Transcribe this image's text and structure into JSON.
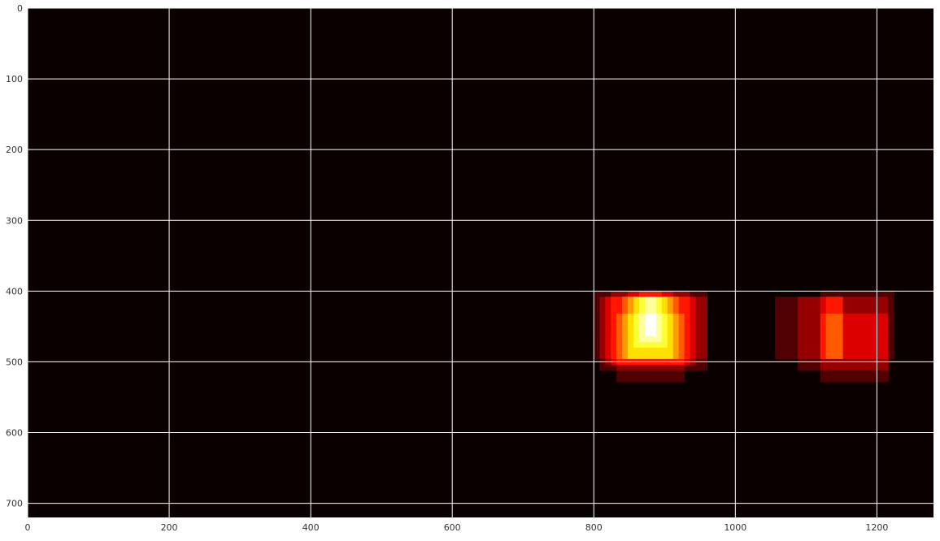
{
  "chart_data": {
    "type": "heatmap",
    "title": "",
    "xlabel": "",
    "ylabel": "",
    "xlim": [
      0,
      1280
    ],
    "ylim": [
      720,
      0
    ],
    "x_ticks": [
      0,
      200,
      400,
      600,
      800,
      1000,
      1200
    ],
    "y_ticks": [
      0,
      100,
      200,
      300,
      400,
      500,
      600,
      700
    ],
    "grid": true,
    "colormap": "hot",
    "background_color": "#0b0000",
    "grid_color": "#ffffff",
    "heat_boxes": [
      {
        "x": [
          800,
          960
        ],
        "y": [
          400,
          496
        ],
        "value": 1
      },
      {
        "x": [
          832,
          928
        ],
        "y": [
          432,
          528
        ],
        "value": 1
      },
      {
        "x": [
          808,
          960
        ],
        "y": [
          412,
          508
        ],
        "value": 1
      },
      {
        "x": [
          816,
          944
        ],
        "y": [
          408,
          504
        ],
        "value": 1
      },
      {
        "x": [
          830,
          930
        ],
        "y": [
          400,
          500
        ],
        "value": 1
      },
      {
        "x": [
          840,
          920
        ],
        "y": [
          410,
          490
        ],
        "value": 1
      },
      {
        "x": [
          848,
          912
        ],
        "y": [
          400,
          496
        ],
        "value": 1
      },
      {
        "x": [
          856,
          904
        ],
        "y": [
          412,
          476
        ],
        "value": 1
      },
      {
        "x": [
          864,
          896
        ],
        "y": [
          404,
          468
        ],
        "value": 1
      },
      {
        "x": [
          872,
          888
        ],
        "y": [
          412,
          460
        ],
        "value": 1
      },
      {
        "x": [
          1056,
          1152
        ],
        "y": [
          412,
          496
        ],
        "value": 1
      },
      {
        "x": [
          1088,
          1216
        ],
        "y": [
          412,
          508
        ],
        "value": 1
      },
      {
        "x": [
          1120,
          1216
        ],
        "y": [
          432,
          528
        ],
        "value": 1
      },
      {
        "x": [
          1120,
          1224
        ],
        "y": [
          400,
          496
        ],
        "value": 1
      },
      {
        "x": [
          1128,
          1152
        ],
        "y": [
          412,
          496
        ],
        "value": 1
      }
    ],
    "max_value": 10
  }
}
